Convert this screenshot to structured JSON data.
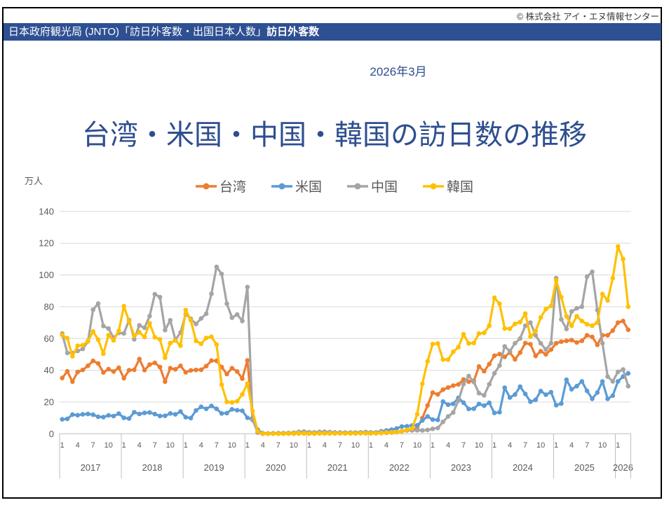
{
  "page": {
    "copyright": "© 株式会社 アイ・エヌ情報センター",
    "header_bar": {
      "source_text": "日本政府観光局 (JNTO)「訪日外客数・出国日本人数」",
      "highlight_text": "訪日外客数",
      "bg_color": "#2E4F92"
    },
    "date_label": "2026年3月",
    "title": "台湾・米国・中国・韓国の訪日数の推移",
    "title_color": "#2E4E8E"
  },
  "chart_data": {
    "type": "line",
    "title": "台湾・米国・中国・韓国の訪日数の推移",
    "unit_label": "万人",
    "ylim": [
      0,
      140
    ],
    "yticks": [
      0,
      20,
      40,
      60,
      80,
      100,
      120,
      140
    ],
    "grid": true,
    "legend_position": "top-center",
    "colors": {
      "grid": "#D9D9D9",
      "axis": "#BFBFBF",
      "tick_text": "#595959"
    },
    "x": {
      "start": "2017-01",
      "end": "2026-03",
      "month_ticks": [
        1,
        4,
        7,
        10
      ],
      "years": [
        {
          "label": "2017",
          "months": 12
        },
        {
          "label": "2018",
          "months": 12
        },
        {
          "label": "2019",
          "months": 12
        },
        {
          "label": "2020",
          "months": 12
        },
        {
          "label": "2021",
          "months": 12
        },
        {
          "label": "2022",
          "months": 12
        },
        {
          "label": "2023",
          "months": 12
        },
        {
          "label": "2024",
          "months": 12
        },
        {
          "label": "2025",
          "months": 12
        },
        {
          "label": "2026",
          "months": 3
        }
      ]
    },
    "series": [
      {
        "name": "台湾",
        "color": "#ED7D31",
        "values": [
          35.1,
          39.3,
          32.8,
          38.9,
          40.2,
          42.8,
          45.9,
          44.3,
          38.6,
          40.7,
          39.2,
          41.6,
          35.0,
          40.0,
          40.3,
          47.0,
          40.1,
          43.6,
          44.7,
          42.0,
          32.8,
          41.3,
          40.6,
          42.8,
          38.7,
          39.9,
          40.2,
          40.3,
          42.6,
          46.1,
          45.9,
          42.0,
          37.6,
          41.3,
          39.2,
          34.7,
          46.2,
          10.1,
          0.8,
          0.0,
          0.0,
          0.1,
          0.1,
          0.1,
          0.1,
          0.1,
          0.2,
          0.2,
          0.1,
          0.1,
          0.2,
          0.2,
          0.2,
          0.2,
          0.3,
          0.3,
          0.3,
          0.3,
          0.4,
          0.4,
          0.3,
          0.3,
          0.5,
          0.6,
          0.8,
          1.0,
          1.5,
          2.1,
          2.8,
          3.5,
          9.9,
          17.8,
          25.9,
          24.8,
          27.8,
          29.1,
          30.3,
          31.1,
          34.2,
          32.8,
          33.3,
          42.4,
          39.4,
          43.9,
          49.2,
          50.2,
          48.4,
          51.2,
          46.9,
          51.1,
          57.1,
          56.4,
          49.0,
          52.0,
          50.0,
          53.0,
          57.0,
          58.0,
          58.5,
          59.0,
          57.5,
          58.5,
          62.0,
          61.0,
          56.0,
          62.0,
          62.0,
          65.0,
          70.0,
          71.0,
          65.5
        ]
      },
      {
        "name": "米国",
        "color": "#5B9BD5",
        "values": [
          9.1,
          9.4,
          12.1,
          11.7,
          12.2,
          12.5,
          12.0,
          10.7,
          10.5,
          11.6,
          11.1,
          12.7,
          10.0,
          9.6,
          13.6,
          12.5,
          13.1,
          13.4,
          12.4,
          11.2,
          11.3,
          12.8,
          12.2,
          14.0,
          10.4,
          9.9,
          14.7,
          17.0,
          15.7,
          17.5,
          15.7,
          12.8,
          13.0,
          15.4,
          14.8,
          14.5,
          10.1,
          8.7,
          2.6,
          0.3,
          0.2,
          0.3,
          0.4,
          0.4,
          0.5,
          0.6,
          0.6,
          0.5,
          0.4,
          0.4,
          0.5,
          0.6,
          0.6,
          0.7,
          0.8,
          0.7,
          0.7,
          0.7,
          0.9,
          1.1,
          0.9,
          0.9,
          1.6,
          2.1,
          2.6,
          3.3,
          4.6,
          4.7,
          5.2,
          5.3,
          8.4,
          10.9,
          8.9,
          8.7,
          20.3,
          18.3,
          18.9,
          22.6,
          19.6,
          15.6,
          15.8,
          18.8,
          17.7,
          19.5,
          13.1,
          13.6,
          29.0,
          22.8,
          24.7,
          29.7,
          25.1,
          20.2,
          21.4,
          26.9,
          24.6,
          26.2,
          18.0,
          19.0,
          34.0,
          28.0,
          30.0,
          33.0,
          27.0,
          22.0,
          26.0,
          33.0,
          22.0,
          24.0,
          33.0,
          36.0,
          38.0
        ]
      },
      {
        "name": "中国",
        "color": "#A5A5A5",
        "values": [
          63.1,
          50.9,
          50.9,
          52.2,
          53.4,
          58.2,
          78.1,
          82.0,
          67.9,
          66.3,
          60.5,
          63.5,
          63.2,
          71.6,
          59.5,
          68.3,
          66.8,
          74.1,
          87.9,
          86.0,
          65.3,
          71.5,
          59.2,
          63.7,
          75.4,
          72.4,
          69.1,
          72.6,
          75.6,
          88.1,
          105.1,
          100.6,
          81.9,
          73.1,
          75.1,
          71.0,
          92.4,
          8.7,
          1.0,
          0.1,
          0.1,
          0.1,
          0.2,
          0.3,
          0.5,
          0.7,
          1.2,
          1.4,
          1.0,
          0.9,
          1.2,
          1.3,
          1.1,
          0.9,
          0.8,
          0.8,
          0.8,
          0.8,
          0.9,
          0.9,
          0.8,
          0.9,
          1.2,
          1.2,
          1.1,
          1.2,
          1.7,
          2.2,
          2.1,
          2.2,
          2.1,
          2.4,
          3.1,
          3.6,
          7.5,
          10.9,
          13.4,
          20.8,
          31.3,
          36.4,
          32.6,
          25.6,
          24.2,
          31.2,
          38.0,
          43.0,
          55.0,
          52.0,
          57.0,
          60.0,
          68.0,
          70.0,
          62.0,
          57.0,
          53.0,
          57.0,
          98.0,
          72.0,
          66.0,
          77.0,
          79.0,
          80.0,
          99.0,
          102.0,
          78.0,
          57.0,
          36.0,
          33.0,
          39.0,
          40.5,
          30.0
        ]
      },
      {
        "name": "韓国",
        "color": "#FFC000",
        "values": [
          62.2,
          60.2,
          48.8,
          55.4,
          55.8,
          58.3,
          64.4,
          59.3,
          50.4,
          62.1,
          58.8,
          64.8,
          80.3,
          70.8,
          61.7,
          63.9,
          60.9,
          69.6,
          60.8,
          59.4,
          47.9,
          57.1,
          58.8,
          55.5,
          77.9,
          71.5,
          58.5,
          56.7,
          60.3,
          61.1,
          56.2,
          30.9,
          20.1,
          19.7,
          20.5,
          24.8,
          31.6,
          14.3,
          1.6,
          0.0,
          0.0,
          0.1,
          0.1,
          0.1,
          0.1,
          0.2,
          0.3,
          0.2,
          0.1,
          0.1,
          0.2,
          0.2,
          0.2,
          0.2,
          0.2,
          0.2,
          0.2,
          0.2,
          0.3,
          0.3,
          0.3,
          0.3,
          0.5,
          0.7,
          0.8,
          1.0,
          1.6,
          2.5,
          3.3,
          12.3,
          31.5,
          45.6,
          56.5,
          56.9,
          46.7,
          46.7,
          51.6,
          54.5,
          62.7,
          56.9,
          57.1,
          63.1,
          63.5,
          68.0,
          85.7,
          81.8,
          66.3,
          66.1,
          69.2,
          70.3,
          75.7,
          61.2,
          64.6,
          73.2,
          78.5,
          80.5,
          96.7,
          86.0,
          74.0,
          68.0,
          74.0,
          71.0,
          69.0,
          68.0,
          70.0,
          88.0,
          84.0,
          98.0,
          118.0,
          110.0,
          80.0
        ]
      }
    ]
  }
}
